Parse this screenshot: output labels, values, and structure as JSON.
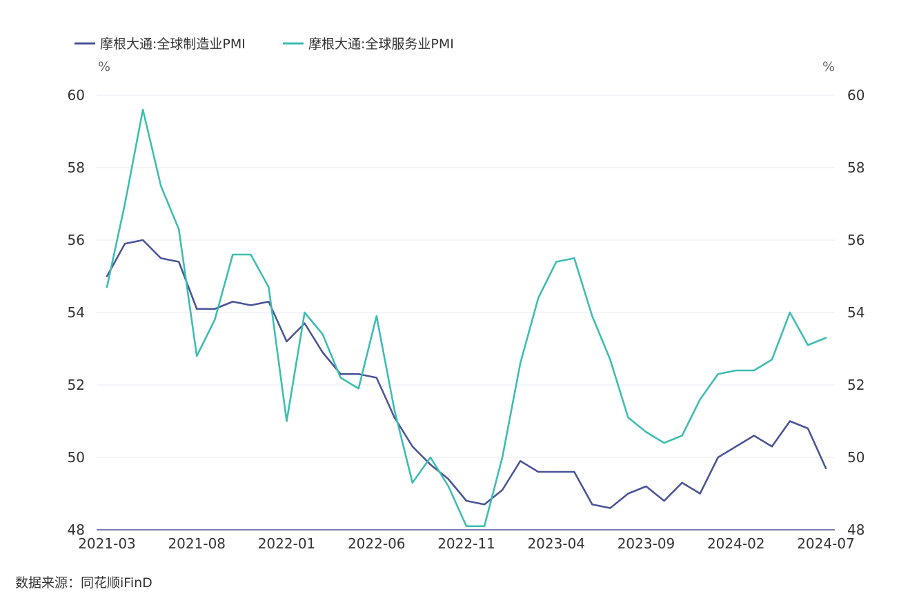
{
  "chart_data": {
    "type": "line",
    "title": "",
    "y_unit_left": "%",
    "y_unit_right": "%",
    "ylim": [
      48,
      60
    ],
    "yticks": [
      48,
      50,
      52,
      54,
      56,
      58,
      60
    ],
    "grid": true,
    "legend_position": "top-left",
    "x": [
      "2021-03",
      "2021-04",
      "2021-05",
      "2021-06",
      "2021-07",
      "2021-08",
      "2021-09",
      "2021-10",
      "2021-11",
      "2021-12",
      "2022-01",
      "2022-02",
      "2022-03",
      "2022-04",
      "2022-05",
      "2022-06",
      "2022-07",
      "2022-08",
      "2022-09",
      "2022-10",
      "2022-11",
      "2022-12",
      "2023-01",
      "2023-02",
      "2023-03",
      "2023-04",
      "2023-05",
      "2023-06",
      "2023-07",
      "2023-08",
      "2023-09",
      "2023-10",
      "2023-11",
      "2023-12",
      "2024-01",
      "2024-02",
      "2024-03",
      "2024-04",
      "2024-05",
      "2024-06",
      "2024-07"
    ],
    "xtick_labels": [
      "2021-03",
      "2021-08",
      "2022-01",
      "2022-06",
      "2022-11",
      "2023-04",
      "2023-09",
      "2024-02",
      "2024-07"
    ],
    "series": [
      {
        "name": "摩根大通:全球制造业PMI",
        "color": "#4a5497",
        "values": [
          55.0,
          55.9,
          56.0,
          55.5,
          55.4,
          54.1,
          54.1,
          54.3,
          54.2,
          54.3,
          53.2,
          53.7,
          52.9,
          52.3,
          52.3,
          52.2,
          51.1,
          50.3,
          49.8,
          49.4,
          48.8,
          48.7,
          49.1,
          49.9,
          49.6,
          49.6,
          49.6,
          48.7,
          48.6,
          49.0,
          49.2,
          48.8,
          49.3,
          49.0,
          50.0,
          50.3,
          50.6,
          50.3,
          51.0,
          50.8,
          49.7
        ]
      },
      {
        "name": "摩根大通:全球服务业PMI",
        "color": "#3dbdb2",
        "values": [
          54.7,
          57.0,
          59.6,
          57.5,
          56.3,
          52.8,
          53.8,
          55.6,
          55.6,
          54.7,
          51.0,
          54.0,
          53.4,
          52.2,
          51.9,
          53.9,
          51.3,
          49.3,
          50.0,
          49.2,
          48.1,
          48.1,
          50.0,
          52.6,
          54.4,
          55.4,
          55.5,
          53.9,
          52.7,
          51.1,
          50.7,
          50.4,
          50.6,
          51.6,
          52.3,
          52.4,
          52.4,
          52.7,
          54.0,
          53.1,
          53.3
        ]
      }
    ]
  },
  "source_text": "数据来源：同花顺iFinD"
}
